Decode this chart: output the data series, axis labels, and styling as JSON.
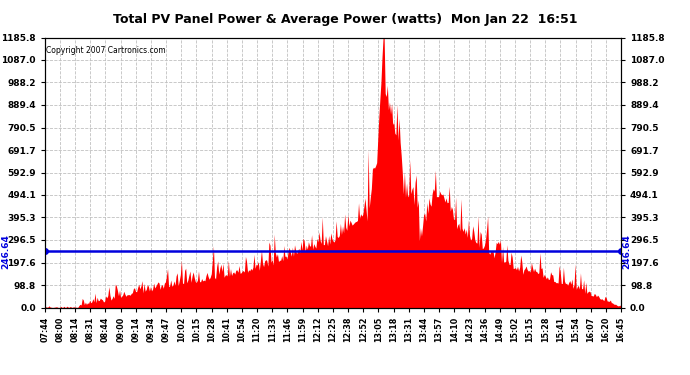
{
  "title": "Total PV Panel Power & Average Power (watts)  Mon Jan 22  16:51",
  "copyright": "Copyright 2007 Cartronics.com",
  "avg_power": 246.64,
  "y_max": 1185.8,
  "y_min": 0.0,
  "y_ticks": [
    0.0,
    98.8,
    197.6,
    296.5,
    395.3,
    494.1,
    592.9,
    691.7,
    790.5,
    889.4,
    988.2,
    1087.0,
    1185.8
  ],
  "background_color": "#ffffff",
  "fill_color": "#ff0000",
  "avg_line_color": "#0000dd",
  "grid_color": "#c0c0c0",
  "x_labels": [
    "07:44",
    "08:00",
    "08:14",
    "08:31",
    "08:44",
    "09:00",
    "09:14",
    "09:34",
    "09:47",
    "10:02",
    "10:15",
    "10:28",
    "10:41",
    "10:54",
    "11:20",
    "11:33",
    "11:46",
    "11:59",
    "12:12",
    "12:25",
    "12:38",
    "12:52",
    "13:05",
    "13:18",
    "13:31",
    "13:44",
    "13:57",
    "14:10",
    "14:23",
    "14:36",
    "14:49",
    "15:02",
    "15:15",
    "15:28",
    "15:41",
    "15:54",
    "16:07",
    "16:20",
    "16:45"
  ]
}
